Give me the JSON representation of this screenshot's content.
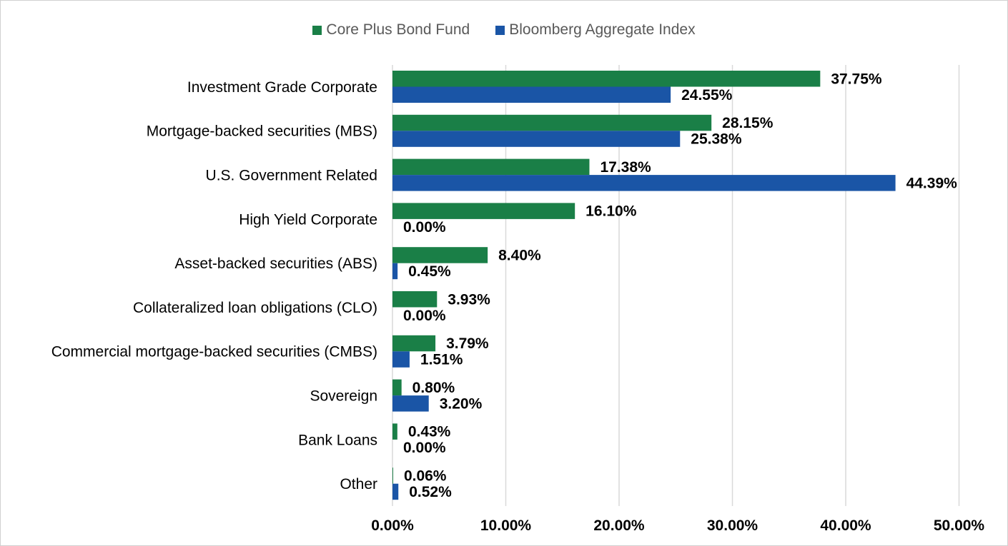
{
  "chart_data": {
    "type": "bar",
    "orientation": "horizontal",
    "categories": [
      "Investment Grade Corporate",
      "Mortgage-backed securities (MBS)",
      "U.S. Government Related",
      "High Yield Corporate",
      "Asset-backed securities (ABS)",
      "Collateralized loan obligations (CLO)",
      "Commercial mortgage-backed securities (CMBS)",
      "Sovereign",
      "Bank Loans",
      "Other"
    ],
    "series": [
      {
        "name": "Core Plus Bond Fund",
        "color": "#1a7f47",
        "values": [
          37.75,
          28.15,
          17.38,
          16.1,
          8.4,
          3.93,
          3.79,
          0.8,
          0.43,
          0.06
        ],
        "labels": [
          "37.75%",
          "28.15%",
          "17.38%",
          "16.10%",
          "8.40%",
          "3.93%",
          "3.79%",
          "0.80%",
          "0.43%",
          "0.06%"
        ]
      },
      {
        "name": "Bloomberg Aggregate Index",
        "color": "#1a55a6",
        "values": [
          24.55,
          25.38,
          44.39,
          0.0,
          0.45,
          0.0,
          1.51,
          3.2,
          0.0,
          0.52
        ],
        "labels": [
          "24.55%",
          "25.38%",
          "44.39%",
          "0.00%",
          "0.45%",
          "0.00%",
          "1.51%",
          "3.20%",
          "0.00%",
          "0.52%"
        ]
      }
    ],
    "xlim": [
      0,
      50
    ],
    "x_ticks": [
      0,
      10,
      20,
      30,
      40,
      50
    ],
    "x_tick_labels": [
      "0.00%",
      "10.00%",
      "20.00%",
      "30.00%",
      "40.00%",
      "50.00%"
    ],
    "grid": true,
    "legend_position": "top-center",
    "title": "",
    "xlabel": "",
    "ylabel": ""
  }
}
